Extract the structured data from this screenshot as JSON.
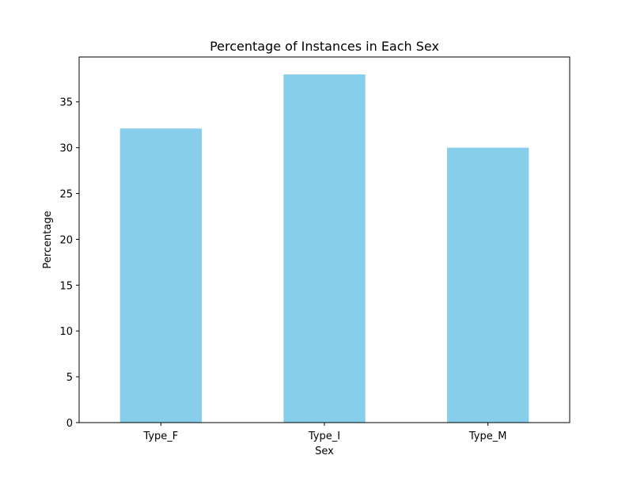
{
  "chart_data": {
    "type": "bar",
    "title": "Percentage of Instances in Each Sex",
    "xlabel": "Sex",
    "ylabel": "Percentage",
    "categories": [
      "Type_F",
      "Type_I",
      "Type_M"
    ],
    "values": [
      32.1,
      38.0,
      30.0
    ],
    "ylim": [
      0,
      39.9
    ],
    "yticks": [
      0,
      5,
      10,
      15,
      20,
      25,
      30,
      35
    ],
    "bar_color": "#87CEEB",
    "grid": false,
    "legend": "none"
  }
}
